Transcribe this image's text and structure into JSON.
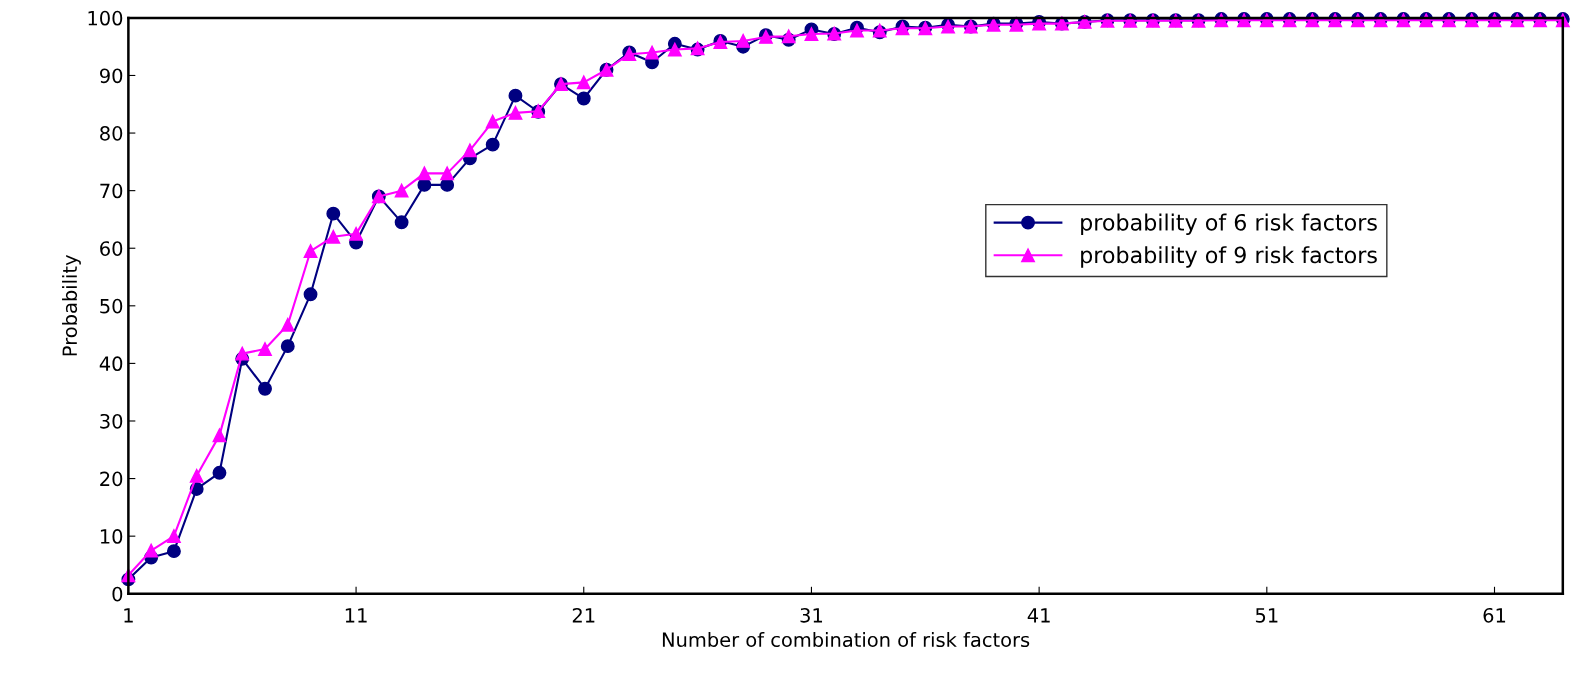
{
  "chart_data": {
    "type": "line",
    "xlabel": "Number of combination of risk factors",
    "ylabel": "Probability",
    "x": [
      1,
      2,
      3,
      4,
      5,
      6,
      7,
      8,
      9,
      10,
      11,
      12,
      13,
      14,
      15,
      16,
      17,
      18,
      19,
      20,
      21,
      22,
      23,
      24,
      25,
      26,
      27,
      28,
      29,
      30,
      31,
      32,
      33,
      34,
      35,
      36,
      37,
      38,
      39,
      40,
      41,
      42,
      43,
      44,
      45,
      46,
      47,
      48,
      49,
      50,
      51,
      52,
      53,
      54,
      55,
      56,
      57,
      58,
      59,
      60,
      61,
      62,
      63,
      64
    ],
    "series": [
      {
        "name": "probability of 6 risk factors",
        "color": "#000080",
        "marker": "circle",
        "values": [
          2.5,
          6.3,
          7.4,
          18.2,
          21,
          40.8,
          35.6,
          43,
          52,
          66,
          61,
          69,
          64.5,
          71,
          71,
          75.6,
          78,
          86.5,
          83.7,
          88.5,
          86,
          91,
          94,
          92.3,
          95.5,
          94.5,
          96,
          95,
          97,
          96.2,
          98,
          97.2,
          98.3,
          97.5,
          98.5,
          98.3,
          98.8,
          98.5,
          99,
          99,
          99.3,
          99,
          99.3,
          99.6,
          99.6,
          99.6,
          99.6,
          99.6,
          99.8,
          99.8,
          99.8,
          99.8,
          99.8,
          99.8,
          99.8,
          99.8,
          99.8,
          99.8,
          99.8,
          99.8,
          99.8,
          99.8,
          99.8,
          99.8
        ]
      },
      {
        "name": "probability of 9 risk factors",
        "color": "#ff00ff",
        "marker": "triangle",
        "values": [
          3.2,
          7.5,
          10,
          20.5,
          27.5,
          41.7,
          42.5,
          46.7,
          59.5,
          62,
          62.5,
          69,
          70,
          73,
          73,
          77,
          82,
          83.5,
          83.8,
          88.5,
          88.8,
          91,
          93.7,
          94,
          94.5,
          94.7,
          95.8,
          96,
          96.7,
          96.8,
          97.2,
          97.3,
          97.8,
          97.8,
          98.2,
          98.2,
          98.5,
          98.5,
          98.8,
          98.8,
          99,
          99,
          99.3,
          99.5,
          99.5,
          99.5,
          99.5,
          99.5,
          99.6,
          99.6,
          99.6,
          99.6,
          99.6,
          99.6,
          99.6,
          99.6,
          99.6,
          99.6,
          99.6,
          99.6,
          99.6,
          99.6,
          99.6,
          99.6
        ]
      }
    ],
    "xlim": [
      1,
      64
    ],
    "xticks": [
      1,
      11,
      21,
      31,
      41,
      51,
      61
    ],
    "ylim": [
      0,
      100
    ],
    "yticks": [
      0,
      10,
      20,
      30,
      40,
      50,
      60,
      70,
      80,
      90,
      100
    ],
    "grid": false,
    "legend": "right"
  }
}
